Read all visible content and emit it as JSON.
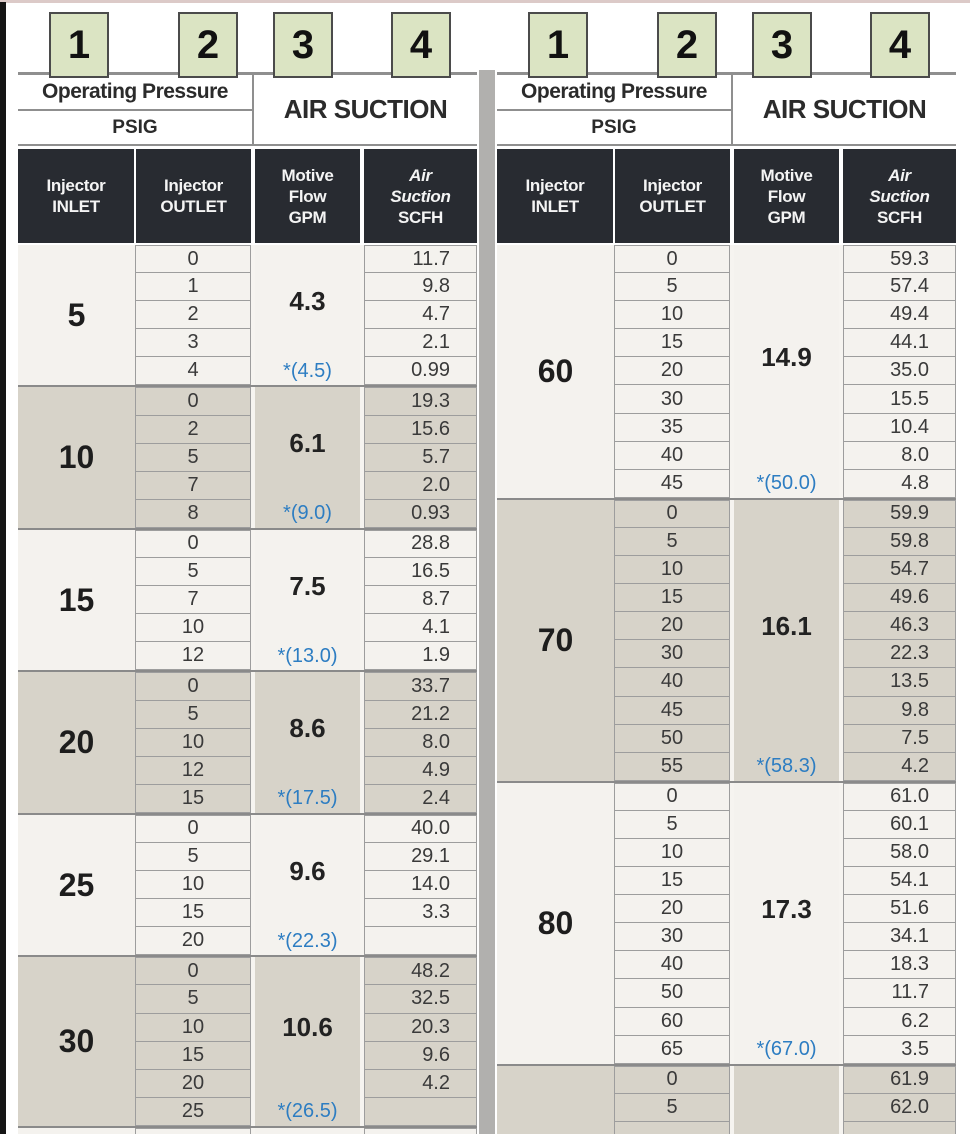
{
  "colors": {
    "header_dark": "#282b31",
    "group_light": "#f4f2ee",
    "group_dark": "#d7d3c9",
    "badge_green": "#dbe4c3",
    "note_blue": "#2d7dc2",
    "rule_gray": "#8f8f8f"
  },
  "badges": {
    "left": [
      "1",
      "2",
      "3",
      "4"
    ],
    "right": [
      "1",
      "2",
      "3",
      "4"
    ]
  },
  "header": {
    "operating_pressure": "Operating Pressure",
    "psig": "PSIG",
    "air_suction": "AIR SUCTION",
    "columns": [
      [
        "Injector",
        "INLET"
      ],
      [
        "Injector",
        "OUTLET"
      ],
      [
        "Motive",
        "Flow",
        "GPM"
      ],
      [
        "Air",
        "Suction",
        "SCFH"
      ]
    ]
  },
  "tables": [
    {
      "side": "left",
      "groups": [
        {
          "inlet": "5",
          "motive_flow_gpm": "4.3",
          "max_outlet": "*(4.5)",
          "rows": [
            [
              "0",
              "11.7"
            ],
            [
              "1",
              "9.8"
            ],
            [
              "2",
              "4.7"
            ],
            [
              "3",
              "2.1"
            ],
            [
              "4",
              "0.99"
            ]
          ]
        },
        {
          "inlet": "10",
          "motive_flow_gpm": "6.1",
          "max_outlet": "*(9.0)",
          "rows": [
            [
              "0",
              "19.3"
            ],
            [
              "2",
              "15.6"
            ],
            [
              "5",
              "5.7"
            ],
            [
              "7",
              "2.0"
            ],
            [
              "8",
              "0.93"
            ]
          ]
        },
        {
          "inlet": "15",
          "motive_flow_gpm": "7.5",
          "max_outlet": "*(13.0)",
          "rows": [
            [
              "0",
              "28.8"
            ],
            [
              "5",
              "16.5"
            ],
            [
              "7",
              "8.7"
            ],
            [
              "10",
              "4.1"
            ],
            [
              "12",
              "1.9"
            ]
          ]
        },
        {
          "inlet": "20",
          "motive_flow_gpm": "8.6",
          "max_outlet": "*(17.5)",
          "rows": [
            [
              "0",
              "33.7"
            ],
            [
              "5",
              "21.2"
            ],
            [
              "10",
              "8.0"
            ],
            [
              "12",
              "4.9"
            ],
            [
              "15",
              "2.4"
            ]
          ]
        },
        {
          "inlet": "25",
          "motive_flow_gpm": "9.6",
          "max_outlet": "*(22.3)",
          "rows": [
            [
              "0",
              "40.0"
            ],
            [
              "5",
              "29.1"
            ],
            [
              "10",
              "14.0"
            ],
            [
              "15",
              "3.3"
            ],
            [
              "20",
              ""
            ]
          ]
        },
        {
          "inlet": "30",
          "motive_flow_gpm": "10.6",
          "max_outlet": "*(26.5)",
          "rows": [
            [
              "0",
              "48.2"
            ],
            [
              "5",
              "32.5"
            ],
            [
              "10",
              "20.3"
            ],
            [
              "15",
              "9.6"
            ],
            [
              "20",
              "4.2"
            ],
            [
              "25",
              ""
            ]
          ]
        },
        {
          "inlet": "",
          "motive_flow_gpm": "",
          "max_outlet": "",
          "rows": [],
          "partial": true,
          "stub_rows": 1
        }
      ]
    },
    {
      "side": "right",
      "groups": [
        {
          "inlet": "60",
          "motive_flow_gpm": "14.9",
          "max_outlet": "*(50.0)",
          "rows": [
            [
              "0",
              "59.3"
            ],
            [
              "5",
              "57.4"
            ],
            [
              "10",
              "49.4"
            ],
            [
              "15",
              "44.1"
            ],
            [
              "20",
              "35.0"
            ],
            [
              "30",
              "15.5"
            ],
            [
              "35",
              "10.4"
            ],
            [
              "40",
              "8.0"
            ],
            [
              "45",
              "4.8"
            ]
          ]
        },
        {
          "inlet": "70",
          "motive_flow_gpm": "16.1",
          "max_outlet": "*(58.3)",
          "rows": [
            [
              "0",
              "59.9"
            ],
            [
              "5",
              "59.8"
            ],
            [
              "10",
              "54.7"
            ],
            [
              "15",
              "49.6"
            ],
            [
              "20",
              "46.3"
            ],
            [
              "30",
              "22.3"
            ],
            [
              "40",
              "13.5"
            ],
            [
              "45",
              "9.8"
            ],
            [
              "50",
              "7.5"
            ],
            [
              "55",
              "4.2"
            ]
          ]
        },
        {
          "inlet": "80",
          "motive_flow_gpm": "17.3",
          "max_outlet": "*(67.0)",
          "rows": [
            [
              "0",
              "61.0"
            ],
            [
              "5",
              "60.1"
            ],
            [
              "10",
              "58.0"
            ],
            [
              "15",
              "54.1"
            ],
            [
              "20",
              "51.6"
            ],
            [
              "30",
              "34.1"
            ],
            [
              "40",
              "18.3"
            ],
            [
              "50",
              "11.7"
            ],
            [
              "60",
              "6.2"
            ],
            [
              "65",
              "3.5"
            ]
          ]
        },
        {
          "inlet": "",
          "motive_flow_gpm": "",
          "max_outlet": "",
          "rows": [
            [
              "0",
              "61.9"
            ],
            [
              "5",
              "62.0"
            ]
          ],
          "partial": true,
          "stub_rows": 1
        }
      ]
    }
  ]
}
